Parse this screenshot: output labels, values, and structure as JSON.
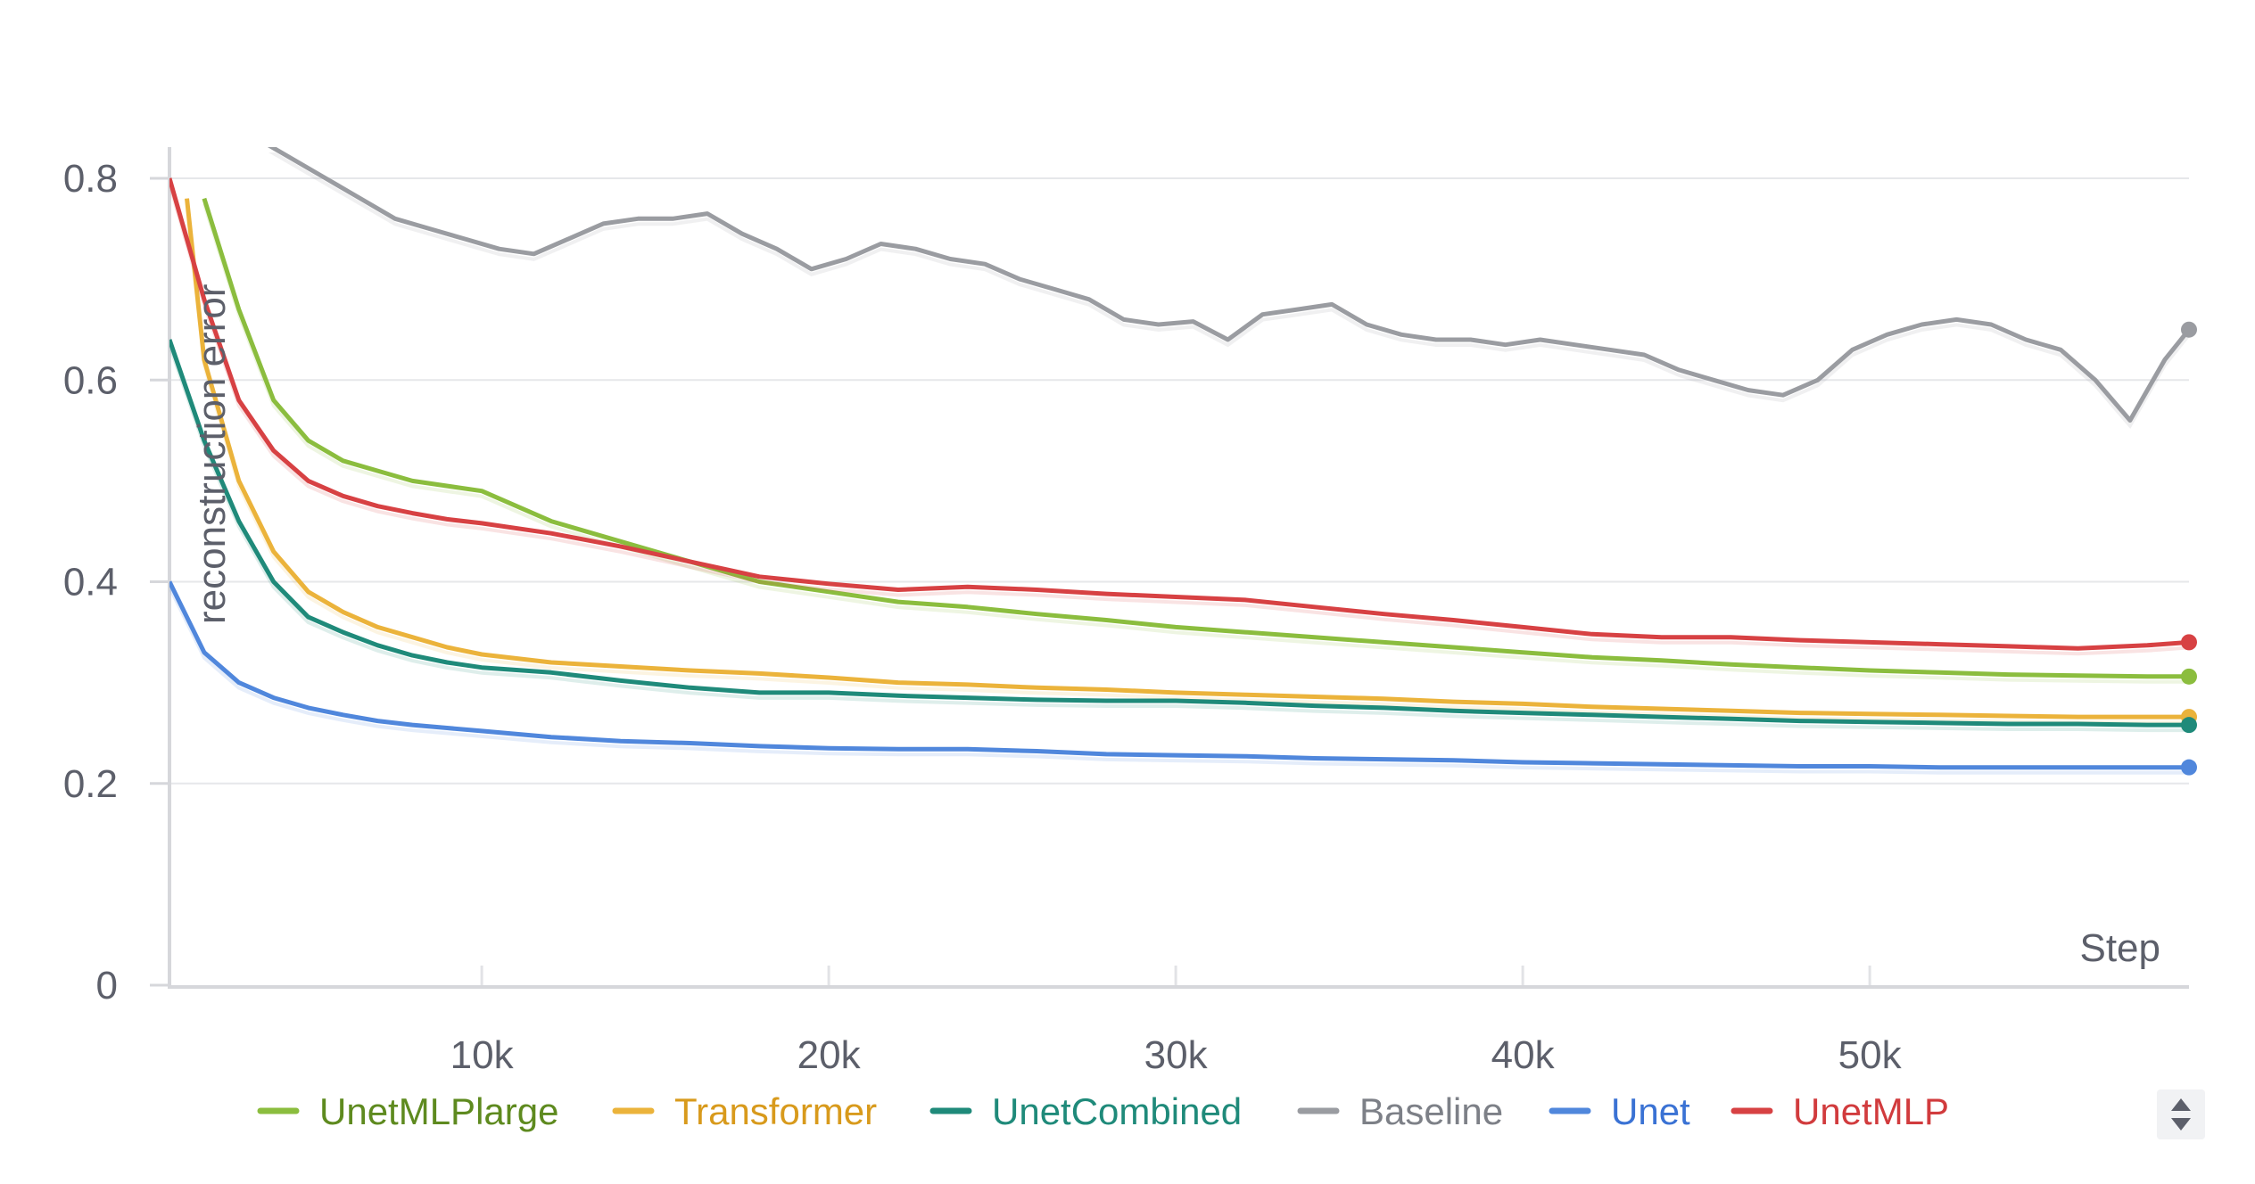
{
  "chart_data": {
    "type": "line",
    "ylabel": "reconstruction error",
    "xlabel": "Step",
    "xlim": [
      1000,
      59200
    ],
    "ylim": [
      0,
      0.8
    ],
    "xticks": [
      10000,
      20000,
      30000,
      40000,
      50000
    ],
    "xtick_labels": [
      "10k",
      "20k",
      "30k",
      "40k",
      "50k"
    ],
    "yticks": [
      0,
      0.2,
      0.4,
      0.6,
      0.8
    ],
    "ytick_labels": [
      "0",
      "0.2",
      "0.4",
      "0.6",
      "0.8"
    ],
    "grid": true,
    "legend_position": "bottom",
    "series": [
      {
        "name": "UnetMLPlarge",
        "color": "#8bbd3e",
        "label_color": "#5e8a1f",
        "x": [
          2000,
          3000,
          4000,
          5000,
          6000,
          7000,
          8000,
          10000,
          12000,
          14000,
          16000,
          18000,
          20000,
          22000,
          24000,
          26000,
          28000,
          30000,
          32000,
          34000,
          36000,
          38000,
          40000,
          42000,
          44000,
          46000,
          48000,
          50000,
          52000,
          54000,
          56000,
          58000,
          59200
        ],
        "y": [
          0.78,
          0.67,
          0.58,
          0.54,
          0.52,
          0.51,
          0.5,
          0.49,
          0.46,
          0.44,
          0.42,
          0.4,
          0.39,
          0.38,
          0.375,
          0.368,
          0.362,
          0.355,
          0.35,
          0.345,
          0.34,
          0.335,
          0.33,
          0.325,
          0.322,
          0.318,
          0.315,
          0.312,
          0.31,
          0.308,
          0.307,
          0.306,
          0.306
        ]
      },
      {
        "name": "Transformer",
        "color": "#ebb33b",
        "label_color": "#d89a1c",
        "x": [
          1500,
          2000,
          3000,
          4000,
          5000,
          6000,
          7000,
          8000,
          9000,
          10000,
          12000,
          14000,
          16000,
          18000,
          20000,
          22000,
          24000,
          26000,
          28000,
          30000,
          32000,
          34000,
          36000,
          38000,
          40000,
          42000,
          44000,
          46000,
          48000,
          50000,
          52000,
          54000,
          56000,
          58000,
          59200
        ],
        "y": [
          0.78,
          0.62,
          0.5,
          0.43,
          0.39,
          0.37,
          0.355,
          0.345,
          0.335,
          0.328,
          0.32,
          0.316,
          0.312,
          0.309,
          0.305,
          0.3,
          0.298,
          0.295,
          0.293,
          0.29,
          0.288,
          0.286,
          0.284,
          0.281,
          0.279,
          0.276,
          0.274,
          0.272,
          0.27,
          0.269,
          0.268,
          0.267,
          0.266,
          0.266,
          0.266
        ]
      },
      {
        "name": "UnetCombined",
        "color": "#1f8a7a",
        "label_color": "#1f8a7a",
        "x": [
          1000,
          2000,
          3000,
          4000,
          5000,
          6000,
          7000,
          8000,
          9000,
          10000,
          12000,
          14000,
          16000,
          18000,
          20000,
          22000,
          24000,
          26000,
          28000,
          30000,
          32000,
          34000,
          36000,
          38000,
          40000,
          42000,
          44000,
          46000,
          48000,
          50000,
          52000,
          54000,
          56000,
          58000,
          59200
        ],
        "y": [
          0.64,
          0.54,
          0.46,
          0.4,
          0.365,
          0.35,
          0.337,
          0.327,
          0.32,
          0.315,
          0.31,
          0.302,
          0.295,
          0.29,
          0.29,
          0.287,
          0.285,
          0.283,
          0.282,
          0.282,
          0.28,
          0.277,
          0.275,
          0.272,
          0.27,
          0.268,
          0.266,
          0.264,
          0.262,
          0.261,
          0.26,
          0.259,
          0.259,
          0.258,
          0.258
        ]
      },
      {
        "name": "Baseline",
        "color": "#9a9ca1",
        "label_color": "#7d8087",
        "x": [
          3500,
          4500,
          5500,
          6500,
          7500,
          8500,
          9500,
          10500,
          11500,
          12500,
          13500,
          14500,
          15500,
          16500,
          17500,
          18500,
          19500,
          20500,
          21500,
          22500,
          23500,
          24500,
          25500,
          26500,
          27500,
          28500,
          29500,
          30500,
          31500,
          32500,
          33500,
          34500,
          35500,
          36500,
          37500,
          38500,
          39500,
          40500,
          41500,
          42500,
          43500,
          44500,
          45500,
          46500,
          47500,
          48500,
          49500,
          50500,
          51500,
          52500,
          53500,
          54500,
          55500,
          56500,
          57500,
          58500,
          59200
        ],
        "y": [
          0.84,
          0.82,
          0.8,
          0.78,
          0.76,
          0.75,
          0.74,
          0.73,
          0.725,
          0.74,
          0.755,
          0.76,
          0.76,
          0.765,
          0.745,
          0.73,
          0.71,
          0.72,
          0.735,
          0.73,
          0.72,
          0.715,
          0.7,
          0.69,
          0.68,
          0.66,
          0.655,
          0.658,
          0.64,
          0.665,
          0.67,
          0.675,
          0.655,
          0.645,
          0.64,
          0.64,
          0.635,
          0.64,
          0.635,
          0.63,
          0.625,
          0.61,
          0.6,
          0.59,
          0.585,
          0.6,
          0.63,
          0.645,
          0.655,
          0.66,
          0.655,
          0.64,
          0.63,
          0.6,
          0.56,
          0.62,
          0.65
        ]
      },
      {
        "name": "Unet",
        "color": "#5087dc",
        "label_color": "#3a72d4",
        "x": [
          1000,
          2000,
          3000,
          4000,
          5000,
          6000,
          7000,
          8000,
          9000,
          10000,
          12000,
          14000,
          16000,
          18000,
          20000,
          22000,
          24000,
          26000,
          28000,
          30000,
          32000,
          34000,
          36000,
          38000,
          40000,
          42000,
          44000,
          46000,
          48000,
          50000,
          52000,
          54000,
          56000,
          58000,
          59200
        ],
        "y": [
          0.4,
          0.33,
          0.3,
          0.285,
          0.275,
          0.268,
          0.262,
          0.258,
          0.255,
          0.252,
          0.246,
          0.242,
          0.24,
          0.237,
          0.235,
          0.234,
          0.234,
          0.232,
          0.229,
          0.228,
          0.227,
          0.225,
          0.224,
          0.223,
          0.221,
          0.22,
          0.219,
          0.218,
          0.217,
          0.217,
          0.216,
          0.216,
          0.216,
          0.216,
          0.216
        ]
      },
      {
        "name": "UnetMLP",
        "color": "#d74143",
        "label_color": "#d13b3d",
        "x": [
          1000,
          2000,
          3000,
          4000,
          5000,
          6000,
          7000,
          8000,
          9000,
          10000,
          12000,
          14000,
          16000,
          18000,
          20000,
          22000,
          24000,
          26000,
          28000,
          30000,
          32000,
          34000,
          36000,
          38000,
          40000,
          42000,
          44000,
          46000,
          48000,
          50000,
          52000,
          54000,
          56000,
          58000,
          59200
        ],
        "y": [
          0.8,
          0.68,
          0.58,
          0.53,
          0.5,
          0.485,
          0.475,
          0.468,
          0.462,
          0.458,
          0.448,
          0.435,
          0.42,
          0.405,
          0.398,
          0.392,
          0.395,
          0.392,
          0.388,
          0.385,
          0.382,
          0.375,
          0.368,
          0.362,
          0.355,
          0.348,
          0.345,
          0.345,
          0.342,
          0.34,
          0.338,
          0.336,
          0.334,
          0.337,
          0.34
        ]
      }
    ]
  }
}
